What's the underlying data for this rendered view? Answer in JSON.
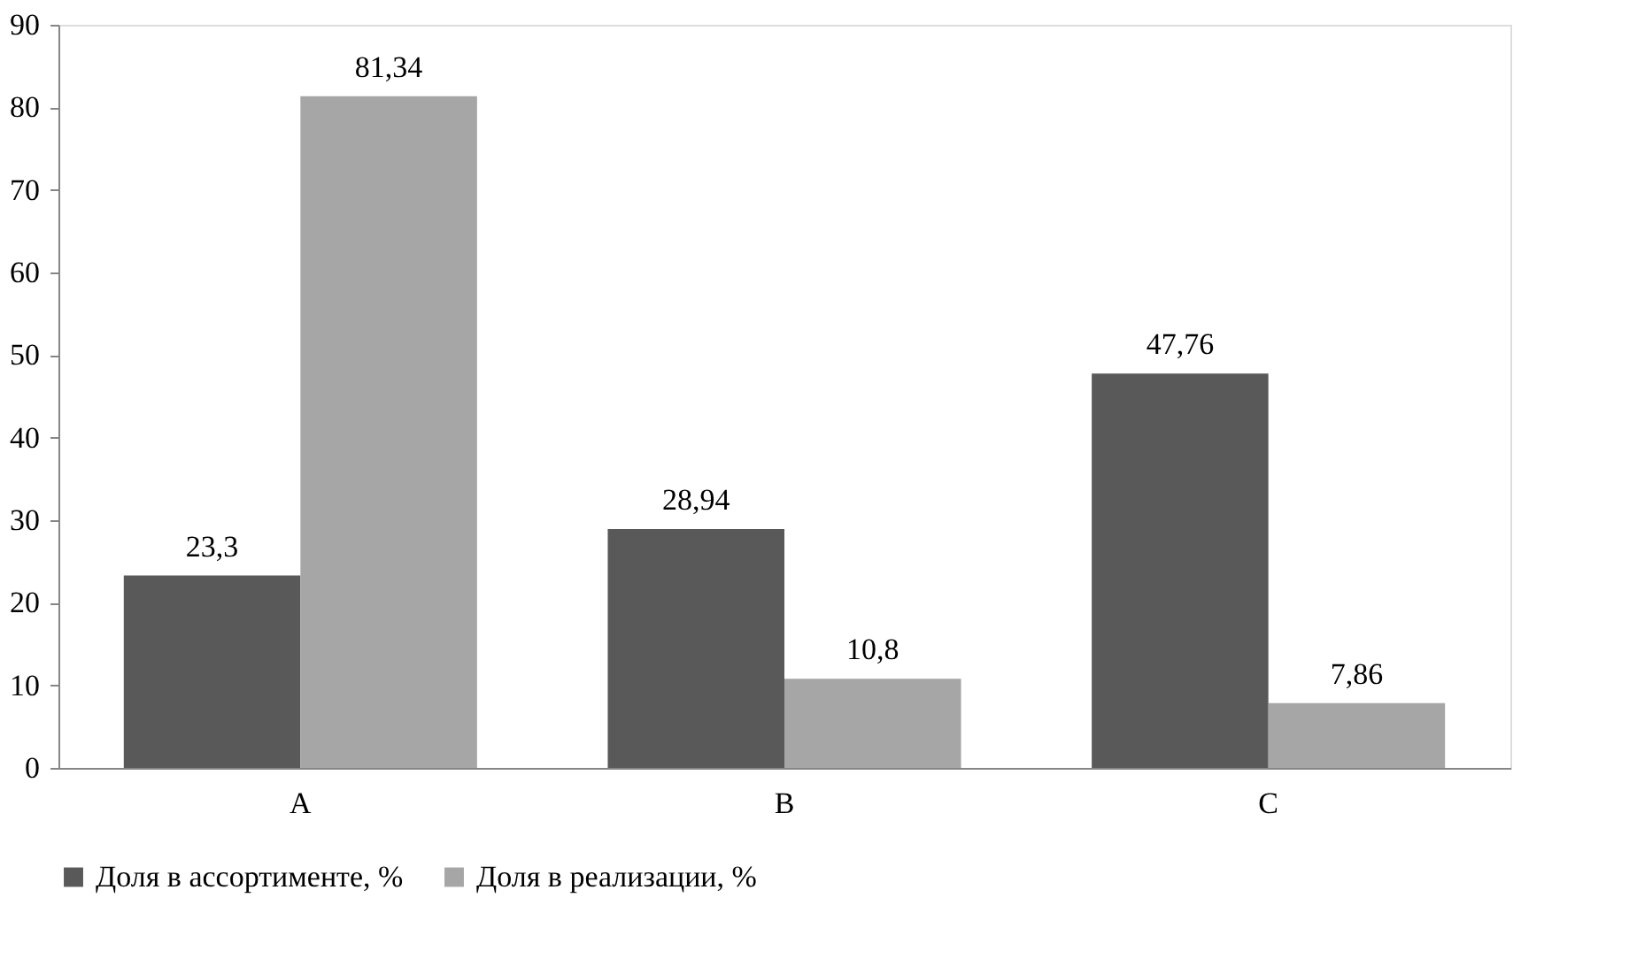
{
  "chart_data": {
    "type": "bar",
    "categories": [
      "A",
      "B",
      "C"
    ],
    "series": [
      {
        "name": "Доля в ассортименте, %",
        "color": "#595959",
        "values": [
          23.3,
          28.94,
          47.76
        ],
        "value_labels": [
          "23,3",
          "28,94",
          "47,76"
        ]
      },
      {
        "name": "Доля в реализации, %",
        "color": "#a6a6a6",
        "values": [
          81.34,
          10.8,
          7.86
        ],
        "value_labels": [
          "81,34",
          "10,8",
          "7,86"
        ]
      }
    ],
    "ylim": [
      0,
      90
    ],
    "yticks": [
      0,
      10,
      20,
      30,
      40,
      50,
      60,
      70,
      80,
      90
    ],
    "grid": false,
    "legend": "bottom"
  }
}
